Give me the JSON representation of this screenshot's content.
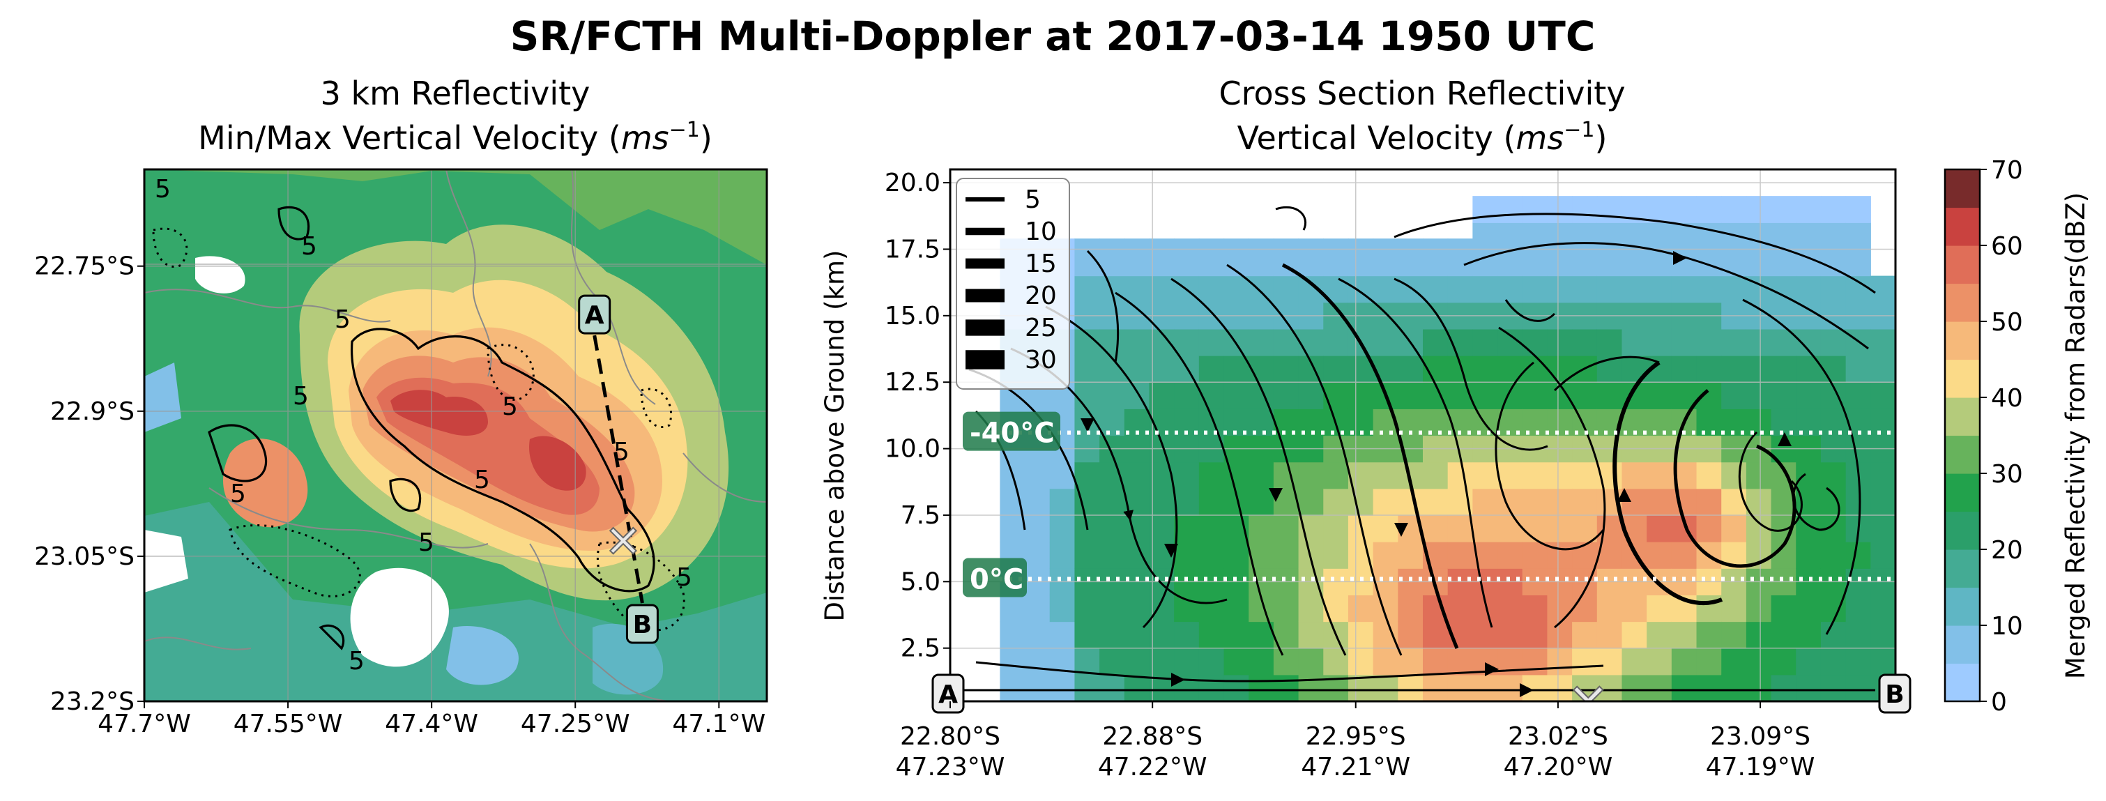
{
  "figure": {
    "suptitle": "SR/FCTH Multi-Doppler at 2017-03-14 1950 UTC"
  },
  "chart_data": [
    {
      "type": "heatmap",
      "panel": "map",
      "title_line1": "3 km Reflectivity",
      "title_line2": "Min/Max Vertical Velocity (",
      "title_unit_main": "ms",
      "title_unit_exp": "−1",
      "title_close": ")",
      "xlabel": "",
      "ylabel": "",
      "x_ticks": [
        "47.7°W",
        "47.55°W",
        "47.4°W",
        "47.25°W",
        "47.1°W"
      ],
      "x_tick_values": [
        -47.7,
        -47.55,
        -47.4,
        -47.25,
        -47.1
      ],
      "y_ticks": [
        "22.75°S",
        "22.9°S",
        "23.05°S",
        "23.2°S"
      ],
      "y_tick_values": [
        -22.75,
        -22.9,
        -23.05,
        -23.2
      ],
      "xlim": [
        -47.7,
        -47.05
      ],
      "ylim": [
        -23.2,
        -22.65
      ],
      "field": "reflectivity (dBZ)",
      "core_max_dbz": 55,
      "contour_label": "5",
      "contour_levels": [
        -5,
        5
      ],
      "cross_section": {
        "start_label": "A",
        "end_label": "B",
        "start": {
          "lon": -47.23,
          "lat": -22.8
        },
        "end": {
          "lon": -47.18,
          "lat": -23.12
        }
      },
      "marker": {
        "symbol": "✕",
        "lon": -47.2,
        "lat": -23.035
      },
      "grid": true
    },
    {
      "type": "heatmap",
      "panel": "cross_section",
      "title_line1": "Cross Section Reflectivity",
      "title_line2": "Vertical Velocity (",
      "title_unit_main": "ms",
      "title_unit_exp": "−1",
      "title_close": ")",
      "ylabel": "Distance above Ground (km)",
      "y_ticks": [
        "2.5",
        "5.0",
        "7.5",
        "10.0",
        "12.5",
        "15.0",
        "17.5",
        "20.0"
      ],
      "y_tick_values": [
        2.5,
        5.0,
        7.5,
        10.0,
        12.5,
        15.0,
        17.5,
        20.0
      ],
      "ylim": [
        0.5,
        20.5
      ],
      "x_ticks": [
        {
          "lat": "22.80°S",
          "lon": "47.23°W"
        },
        {
          "lat": "22.88°S",
          "lon": "47.22°W"
        },
        {
          "lat": "22.95°S",
          "lon": "47.21°W"
        },
        {
          "lat": "23.02°S",
          "lon": "47.20°W"
        },
        {
          "lat": "23.09°S",
          "lon": "47.19°W"
        }
      ],
      "x_tick_positions": [
        0,
        0.214,
        0.429,
        0.643,
        0.857
      ],
      "xlim": [
        0,
        1
      ],
      "start_label": "A",
      "end_label": "B",
      "isotherms": [
        {
          "label": "-40°C",
          "height_km": 10.6
        },
        {
          "label": "0°C",
          "height_km": 5.1
        }
      ],
      "legend": {
        "position": "upper-left",
        "entries": [
          {
            "label": "5",
            "speed": 5
          },
          {
            "label": "10",
            "speed": 10
          },
          {
            "label": "15",
            "speed": 15
          },
          {
            "label": "20",
            "speed": 20
          },
          {
            "label": "25",
            "speed": 25
          },
          {
            "label": "30",
            "speed": 30
          }
        ]
      },
      "marker": {
        "symbol": "✕",
        "x": 0.675,
        "height_km": 0.5
      },
      "updraft_core_max_dbz": 60,
      "echo_top_km": 19.5,
      "grid": true
    }
  ],
  "colorbar": {
    "label": "Merged Reflectivity from Radars(dBZ)",
    "min": 0,
    "max": 70,
    "ticks": [
      "0",
      "10",
      "20",
      "30",
      "40",
      "50",
      "60",
      "70"
    ],
    "tick_values": [
      0,
      10,
      20,
      30,
      40,
      50,
      60,
      70
    ],
    "bins": [
      {
        "from": 0,
        "to": 5,
        "color": "#9ecbff"
      },
      {
        "from": 5,
        "to": 10,
        "color": "#82c0e8"
      },
      {
        "from": 10,
        "to": 15,
        "color": "#5fb6c4"
      },
      {
        "from": 15,
        "to": 20,
        "color": "#44ab94"
      },
      {
        "from": 20,
        "to": 25,
        "color": "#2b9f6a"
      },
      {
        "from": 25,
        "to": 30,
        "color": "#22a24c"
      },
      {
        "from": 30,
        "to": 35,
        "color": "#67b35c"
      },
      {
        "from": 35,
        "to": 40,
        "color": "#b4cb7b"
      },
      {
        "from": 40,
        "to": 45,
        "color": "#fbda88"
      },
      {
        "from": 45,
        "to": 50,
        "color": "#f6b97a"
      },
      {
        "from": 50,
        "to": 55,
        "color": "#ec9167"
      },
      {
        "from": 55,
        "to": 60,
        "color": "#e06e58"
      },
      {
        "from": 60,
        "to": 65,
        "color": "#c9423f"
      },
      {
        "from": 65,
        "to": 70,
        "color": "#782b2b"
      },
      {
        "from": 70,
        "to": 75,
        "color": "#1a1414"
      }
    ]
  }
}
